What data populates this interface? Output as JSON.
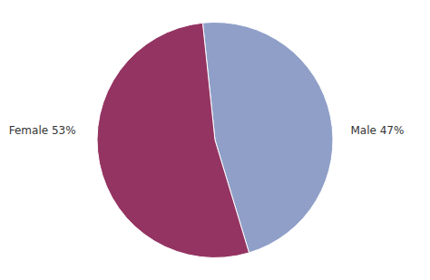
{
  "chart_data": {
    "type": "pie",
    "categories": [
      "Male 47%",
      "Female 53%"
    ],
    "values": [
      47,
      53
    ],
    "colors": [
      "#8f9fc8",
      "#943462"
    ]
  }
}
